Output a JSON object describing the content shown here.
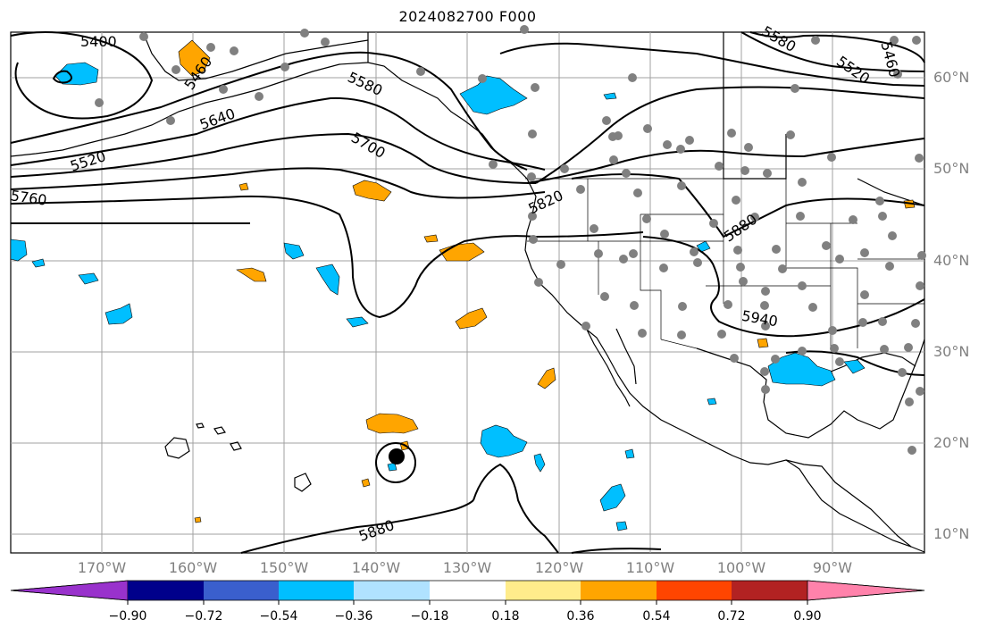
{
  "title": "2024082700 F000",
  "lat_labels": [
    "60°N",
    "50°N",
    "40°N",
    "30°N",
    "20°N",
    "10°N"
  ],
  "lon_labels": [
    "170°W",
    "160°W",
    "150°W",
    "140°W",
    "130°W",
    "120°W",
    "110°W",
    "100°W",
    "90°W"
  ],
  "contour_labels": [
    "5400",
    "5460",
    "5520",
    "5580",
    "5640",
    "5700",
    "5760",
    "5820",
    "5880",
    "5940",
    "5580",
    "5520",
    "5460",
    "5880"
  ],
  "colorbar": {
    "ticks": [
      "−0.90",
      "−0.72",
      "−0.54",
      "−0.36",
      "−0.18",
      "0.18",
      "0.36",
      "0.54",
      "0.72",
      "0.90"
    ],
    "colors": [
      "#9932cc",
      "#00008b",
      "#3a5fcd",
      "#00bfff",
      "#b0e2ff",
      "#ffffff",
      "#ffec8b",
      "#ffa500",
      "#ff4500",
      "#b22222",
      "#ff82ab"
    ]
  }
}
